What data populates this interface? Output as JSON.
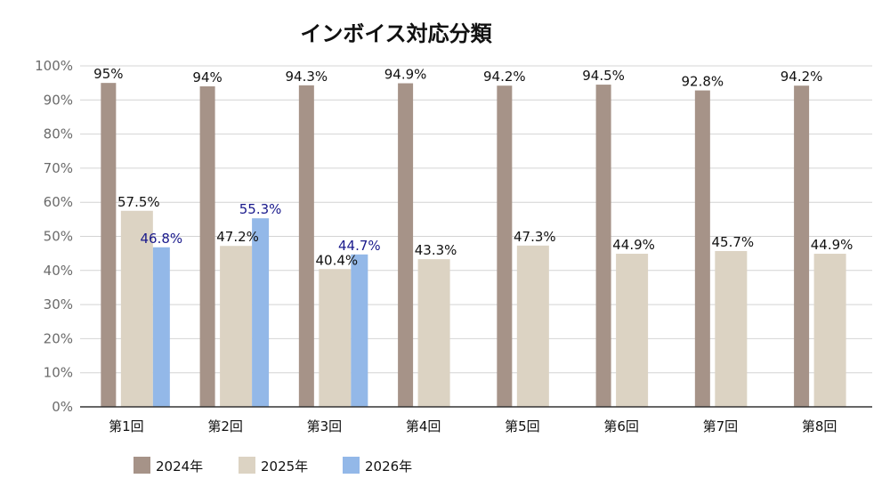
{
  "chart_data": {
    "type": "bar",
    "title": "インボイス対応分類",
    "categories": [
      "第1回",
      "第2回",
      "第3回",
      "第4回",
      "第5回",
      "第6回",
      "第7回",
      "第8回"
    ],
    "ylim": [
      0,
      100
    ],
    "yticks": [
      0,
      10,
      20,
      30,
      40,
      50,
      60,
      70,
      80,
      90,
      100
    ],
    "ytick_suffix": "%",
    "grid": true,
    "legend_position": "bottom-left",
    "series": [
      {
        "name": "2024年",
        "color": "#a69388",
        "label_color": "#111111",
        "values": [
          95,
          94,
          94.3,
          94.9,
          94.2,
          94.5,
          92.8,
          94.2
        ],
        "labels": [
          "95%",
          "94%",
          "94.3%",
          "94.9%",
          "94.2%",
          "94.5%",
          "92.8%",
          "94.2%"
        ]
      },
      {
        "name": "2025年",
        "color": "#dcd3c3",
        "label_color": "#111111",
        "values": [
          57.5,
          47.2,
          40.4,
          43.3,
          47.3,
          44.9,
          45.7,
          44.9
        ],
        "labels": [
          "57.5%",
          "47.2%",
          "40.4%",
          "43.3%",
          "47.3%",
          "44.9%",
          "45.7%",
          "44.9%"
        ]
      },
      {
        "name": "2026年",
        "color": "#93b8e8",
        "label_color": "#1a1a8c",
        "values": [
          46.8,
          55.3,
          44.7,
          null,
          null,
          null,
          null,
          null
        ],
        "labels": [
          "46.8%",
          "55.3%",
          "44.7%",
          null,
          null,
          null,
          null,
          null
        ]
      }
    ]
  }
}
